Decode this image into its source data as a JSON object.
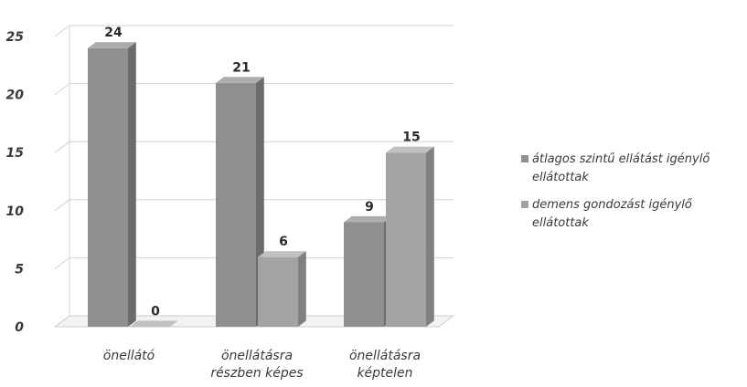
{
  "chart_data": {
    "type": "bar",
    "categories": [
      "önellátó",
      "önellátásra részben képes",
      "önellátásra képtelen"
    ],
    "category_lines": [
      [
        "önellátó"
      ],
      [
        "önellátásra",
        "részben képes"
      ],
      [
        "önellátásra",
        "képtelen"
      ]
    ],
    "series": [
      {
        "name": "átlagos szintű ellátást igénylő ellátottak",
        "values": [
          24,
          21,
          9
        ],
        "color": "#8f8f8f"
      },
      {
        "name": "demens gondozást igénylő ellátottak",
        "values": [
          0,
          6,
          15
        ],
        "color": "#a3a3a3"
      }
    ],
    "ylim": [
      0,
      25
    ],
    "yticks": [
      0,
      5,
      10,
      15,
      20,
      25
    ],
    "grid": true,
    "legend": "right",
    "three_d": true
  }
}
